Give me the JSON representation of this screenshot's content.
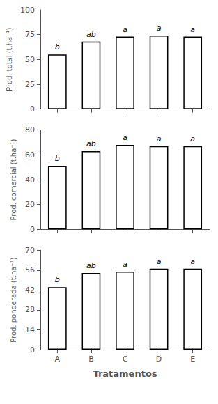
{
  "chart_data": [
    {
      "type": "bar",
      "categories": [
        "A",
        "B",
        "C",
        "D",
        "E"
      ],
      "values": [
        55,
        68,
        73,
        74,
        73
      ],
      "annotations": [
        "b",
        "ab",
        "a",
        "a",
        "a"
      ],
      "y_label": "Prod. total (t.ha⁻¹)",
      "ylim": [
        0,
        100
      ],
      "yticks": [
        0,
        25,
        50,
        75,
        100
      ],
      "color": "white",
      "grid": false,
      "tick_labels": "y"
    },
    {
      "type": "bar",
      "categories": [
        "A",
        "B",
        "C",
        "D",
        "E"
      ],
      "values": [
        51,
        63,
        68,
        67,
        67
      ],
      "annotations": [
        "b",
        "ab",
        "a",
        "a",
        "a"
      ],
      "y_label": "Prod. comercial (t.ha⁻¹)",
      "ylim": [
        0,
        80
      ],
      "yticks": [
        0,
        20,
        40,
        60,
        80
      ],
      "color": "white",
      "grid": false,
      "tick_labels": "y"
    },
    {
      "type": "bar",
      "categories": [
        "A",
        "B",
        "C",
        "D",
        "E"
      ],
      "values": [
        44,
        54,
        55,
        57,
        57
      ],
      "annotations": [
        "b",
        "ab",
        "a",
        "a",
        "a"
      ],
      "y_label": "Prod. ponderada (t.ha⁻¹)",
      "x_label": "Tratamentos",
      "ylim": [
        0,
        70
      ],
      "yticks": [
        0,
        14,
        28,
        42,
        56,
        70
      ],
      "color": "white",
      "grid": false
    }
  ]
}
